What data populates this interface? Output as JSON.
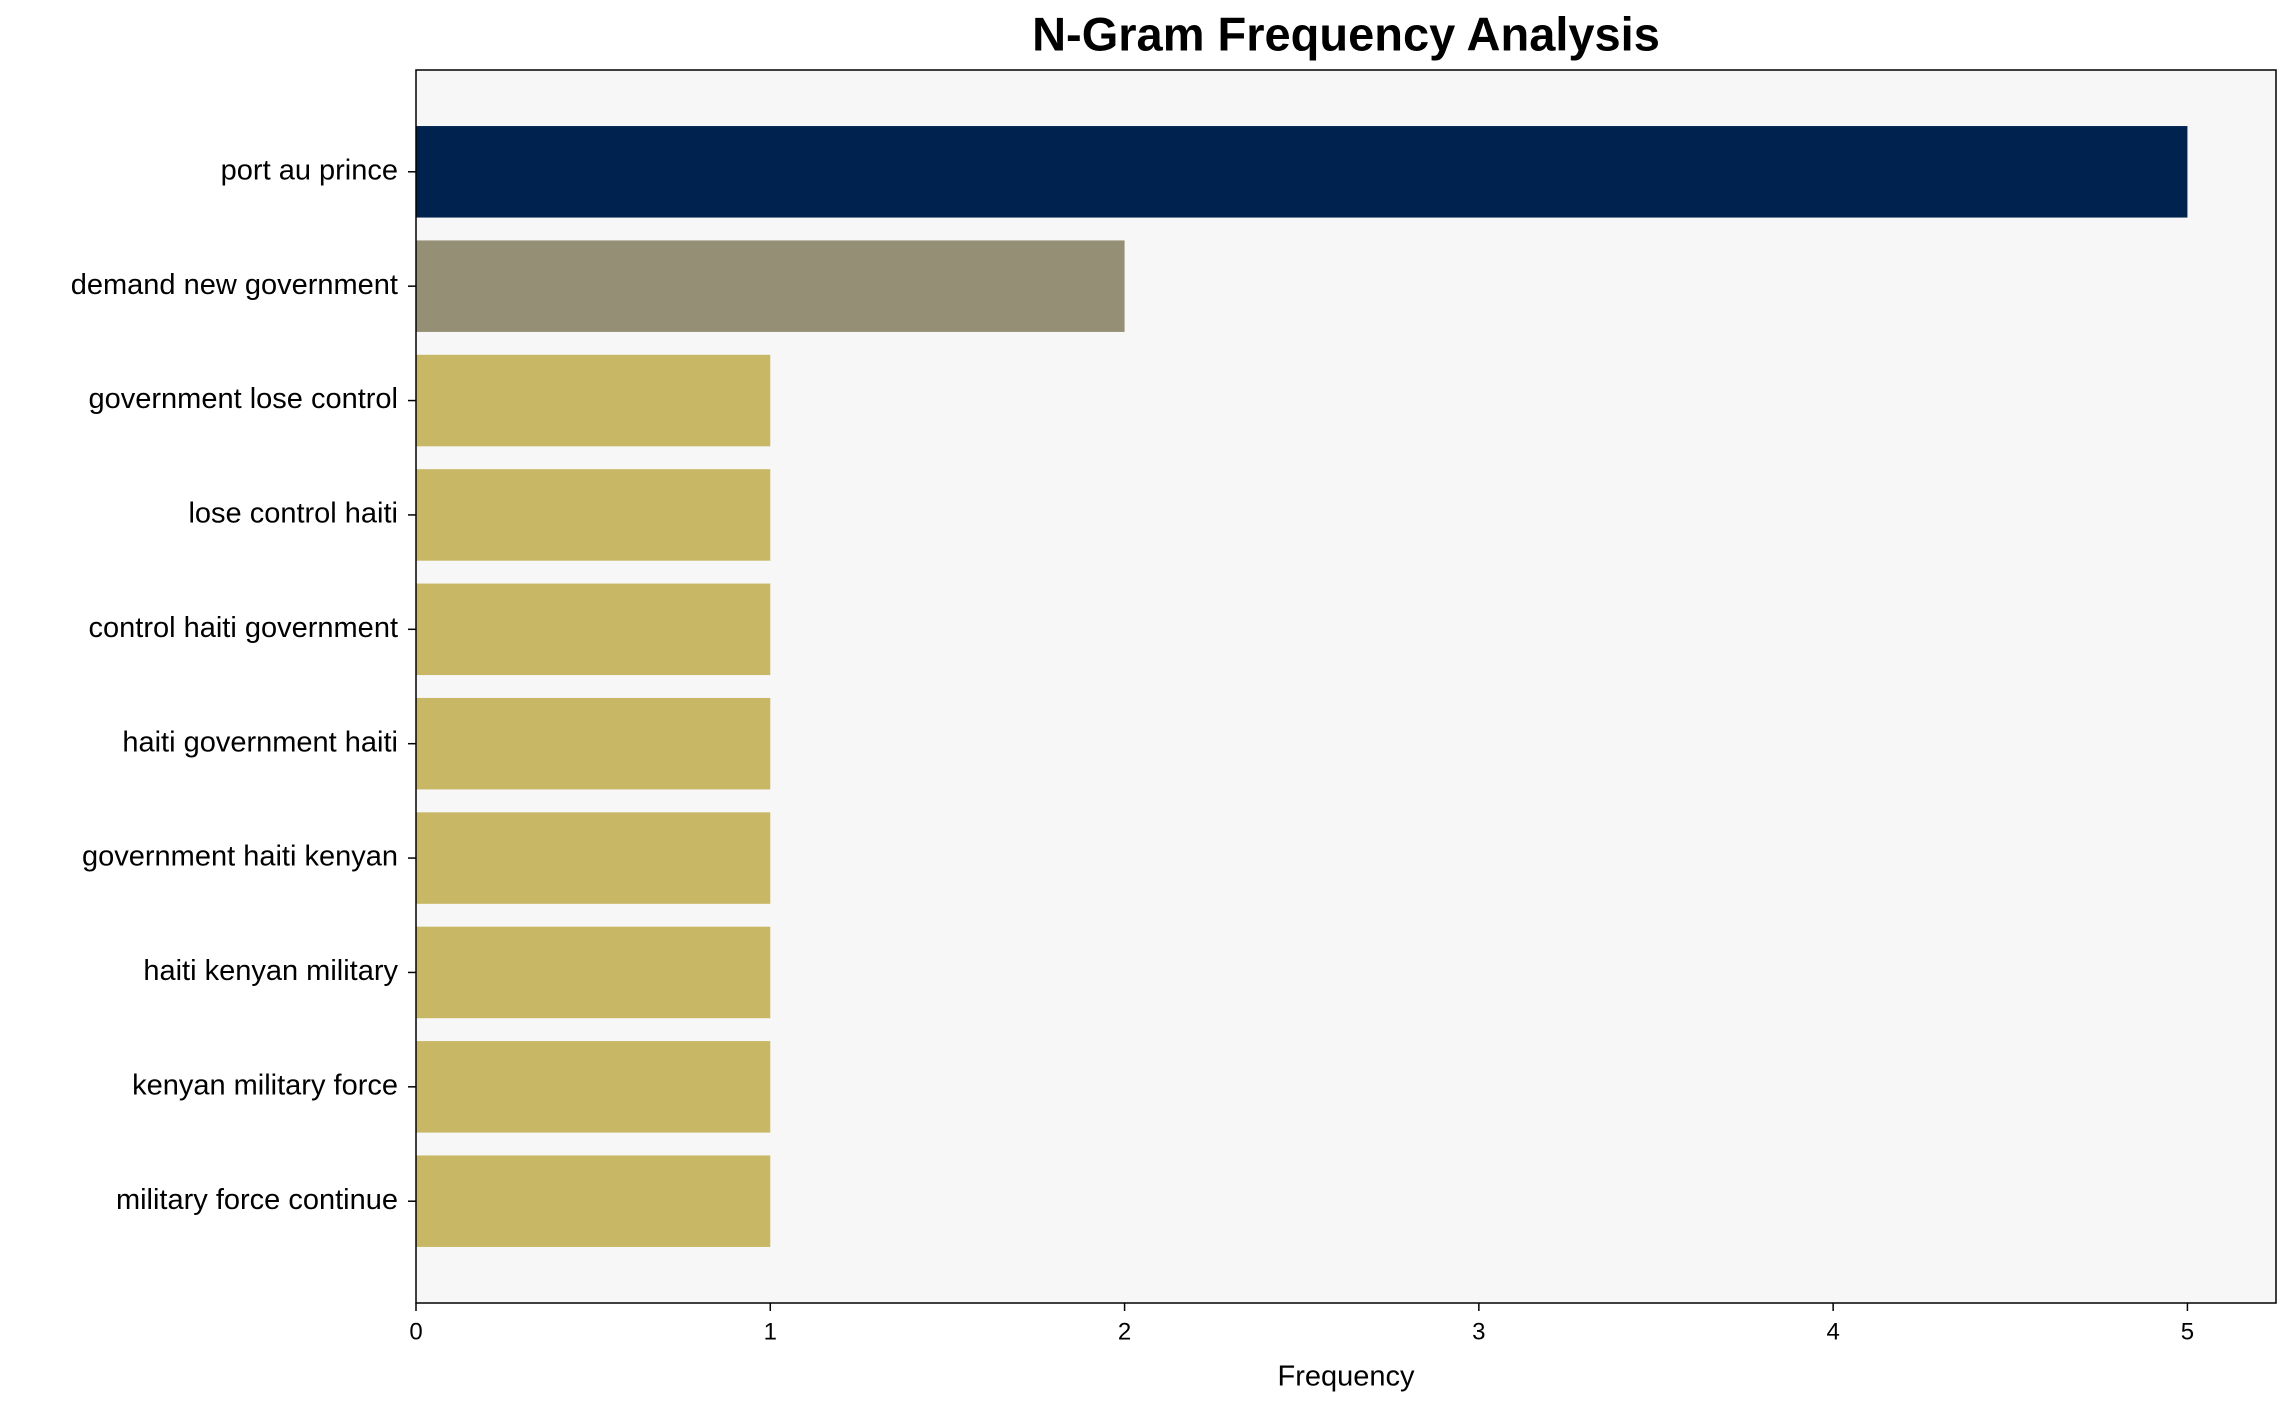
{
  "chart_data": {
    "type": "barh",
    "title": "N-Gram Frequency Analysis",
    "x_label": "Frequency",
    "categories": [
      "port au prince",
      "demand new government",
      "government lose control",
      "lose control haiti",
      "control haiti government",
      "haiti government haiti",
      "government haiti kenyan",
      "haiti kenyan military",
      "kenyan military force",
      "military force continue"
    ],
    "values": [
      5,
      2,
      1,
      1,
      1,
      1,
      1,
      1,
      1,
      1
    ],
    "colors": [
      "#00224e",
      "#958f75",
      "#c8b866",
      "#c8b866",
      "#c8b866",
      "#c8b866",
      "#c8b866",
      "#c8b866",
      "#c8b866",
      "#c8b866"
    ],
    "xlim": [
      0,
      5.25
    ],
    "xticks": [
      0,
      1,
      2,
      3,
      4,
      5
    ]
  }
}
